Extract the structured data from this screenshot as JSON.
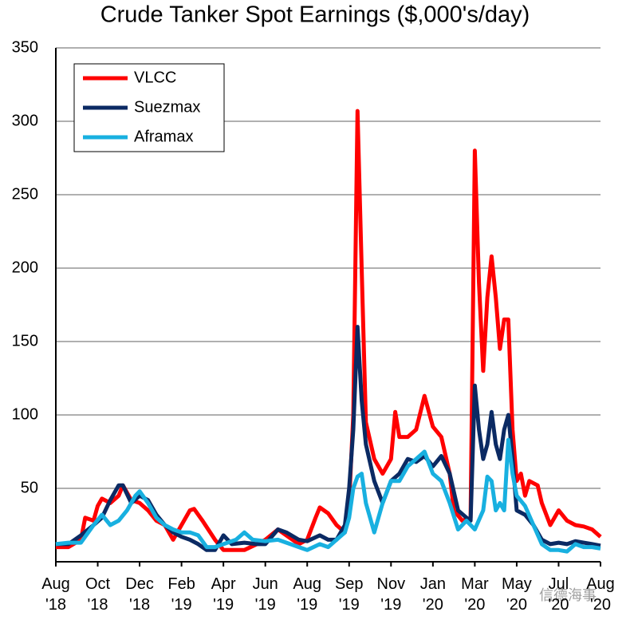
{
  "chart_data": {
    "type": "line",
    "title": "Crude Tanker Spot Earnings ($,000's/day)",
    "watermark": "信德海事",
    "xlim": [
      0,
      13
    ],
    "xticks": [
      {
        "value": 0,
        "label": "Aug '18"
      },
      {
        "value": 1,
        "label": "Oct '18"
      },
      {
        "value": 2,
        "label": "Dec '18"
      },
      {
        "value": 3,
        "label": "Feb '19"
      },
      {
        "value": 4,
        "label": "Apr '19"
      },
      {
        "value": 5,
        "label": "Jun '19"
      },
      {
        "value": 6,
        "label": "Aug '19"
      },
      {
        "value": 7,
        "label": "Sep '19"
      },
      {
        "value": 8,
        "label": "Nov '19"
      },
      {
        "value": 9,
        "label": "Jan '20"
      },
      {
        "value": 10,
        "label": "Mar '20"
      },
      {
        "value": 11,
        "label": "May '20"
      },
      {
        "value": 12,
        "label": "Jul '20"
      },
      {
        "value": 13,
        "label": "Aug '20"
      }
    ],
    "ylim": [
      0,
      350
    ],
    "yticks": [
      50,
      100,
      150,
      200,
      250,
      300,
      350
    ],
    "grid": true,
    "legend": "upper-left",
    "series": [
      {
        "name": "VLCC",
        "color": "#ff0000",
        "x": [
          0,
          0.3,
          0.6,
          0.7,
          0.9,
          1.0,
          1.1,
          1.3,
          1.5,
          1.6,
          1.8,
          2.0,
          2.2,
          2.4,
          2.6,
          2.8,
          3.0,
          3.2,
          3.3,
          3.5,
          3.8,
          4.0,
          4.3,
          4.5,
          4.8,
          5.0,
          5.3,
          5.5,
          5.8,
          6.0,
          6.2,
          6.3,
          6.5,
          6.7,
          6.9,
          7.0,
          7.1,
          7.2,
          7.3,
          7.4,
          7.6,
          7.8,
          8.0,
          8.1,
          8.2,
          8.4,
          8.6,
          8.8,
          9.0,
          9.2,
          9.4,
          9.5,
          9.7,
          9.9,
          10.0,
          10.1,
          10.2,
          10.3,
          10.4,
          10.5,
          10.6,
          10.7,
          10.8,
          10.9,
          11.0,
          11.1,
          11.2,
          11.3,
          11.5,
          11.6,
          11.8,
          12.0,
          12.2,
          12.4,
          12.6,
          12.8,
          13
        ],
        "values": [
          10,
          10,
          15,
          30,
          28,
          38,
          43,
          40,
          45,
          52,
          42,
          40,
          35,
          28,
          25,
          15,
          25,
          35,
          36,
          28,
          15,
          8,
          8,
          8,
          12,
          15,
          22,
          18,
          12,
          15,
          30,
          37,
          33,
          25,
          20,
          40,
          100,
          307,
          200,
          95,
          70,
          60,
          70,
          102,
          85,
          85,
          90,
          113,
          92,
          85,
          60,
          35,
          28,
          30,
          280,
          190,
          130,
          180,
          208,
          180,
          145,
          165,
          165,
          90,
          55,
          60,
          45,
          55,
          52,
          40,
          25,
          35,
          28,
          25,
          24,
          22,
          17
        ]
      },
      {
        "name": "Suezmax",
        "color": "#0b2a63",
        "x": [
          0,
          0.3,
          0.6,
          0.9,
          1.1,
          1.3,
          1.5,
          1.6,
          1.8,
          2.0,
          2.2,
          2.4,
          2.6,
          2.8,
          3.0,
          3.2,
          3.4,
          3.6,
          3.8,
          4.0,
          4.2,
          4.5,
          4.8,
          5.0,
          5.3,
          5.5,
          5.8,
          6.0,
          6.3,
          6.5,
          6.7,
          6.9,
          7.0,
          7.1,
          7.2,
          7.3,
          7.4,
          7.6,
          7.8,
          8.0,
          8.2,
          8.4,
          8.6,
          8.8,
          9.0,
          9.2,
          9.4,
          9.6,
          9.8,
          9.9,
          10.0,
          10.1,
          10.2,
          10.3,
          10.4,
          10.5,
          10.6,
          10.7,
          10.8,
          10.9,
          11.0,
          11.2,
          11.4,
          11.6,
          11.8,
          12.0,
          12.2,
          12.4,
          12.6,
          12.8,
          13
        ],
        "values": [
          12,
          12,
          18,
          25,
          30,
          42,
          52,
          52,
          40,
          45,
          42,
          32,
          25,
          20,
          17,
          15,
          12,
          8,
          8,
          18,
          12,
          13,
          12,
          12,
          22,
          20,
          15,
          14,
          18,
          15,
          15,
          25,
          50,
          90,
          160,
          110,
          80,
          55,
          40,
          55,
          60,
          70,
          68,
          72,
          65,
          72,
          60,
          35,
          30,
          28,
          120,
          90,
          70,
          80,
          102,
          80,
          70,
          90,
          100,
          70,
          35,
          32,
          25,
          15,
          12,
          13,
          12,
          14,
          13,
          12,
          11
        ]
      },
      {
        "name": "Aframax",
        "color": "#18b0e0",
        "x": [
          0,
          0.3,
          0.6,
          0.9,
          1.1,
          1.3,
          1.5,
          1.7,
          1.9,
          2.0,
          2.2,
          2.4,
          2.6,
          2.8,
          3.0,
          3.2,
          3.4,
          3.6,
          3.8,
          4.0,
          4.3,
          4.5,
          4.7,
          5.0,
          5.3,
          5.6,
          5.8,
          6.0,
          6.3,
          6.5,
          6.7,
          6.9,
          7.0,
          7.1,
          7.2,
          7.3,
          7.4,
          7.6,
          7.8,
          8.0,
          8.2,
          8.4,
          8.6,
          8.8,
          9.0,
          9.2,
          9.4,
          9.6,
          9.8,
          10.0,
          10.2,
          10.3,
          10.4,
          10.5,
          10.6,
          10.7,
          10.8,
          10.9,
          11.0,
          11.2,
          11.4,
          11.6,
          11.8,
          12.0,
          12.2,
          12.4,
          12.6,
          12.8,
          13
        ],
        "values": [
          12,
          13,
          13,
          25,
          32,
          25,
          28,
          35,
          45,
          48,
          40,
          30,
          25,
          22,
          20,
          20,
          18,
          10,
          10,
          12,
          15,
          20,
          15,
          14,
          15,
          12,
          10,
          8,
          12,
          10,
          15,
          20,
          30,
          50,
          58,
          60,
          40,
          20,
          40,
          55,
          55,
          65,
          70,
          75,
          60,
          55,
          40,
          22,
          28,
          22,
          35,
          58,
          55,
          35,
          40,
          35,
          83,
          60,
          45,
          38,
          25,
          12,
          8,
          8,
          7,
          12,
          10,
          10,
          9
        ]
      }
    ]
  }
}
